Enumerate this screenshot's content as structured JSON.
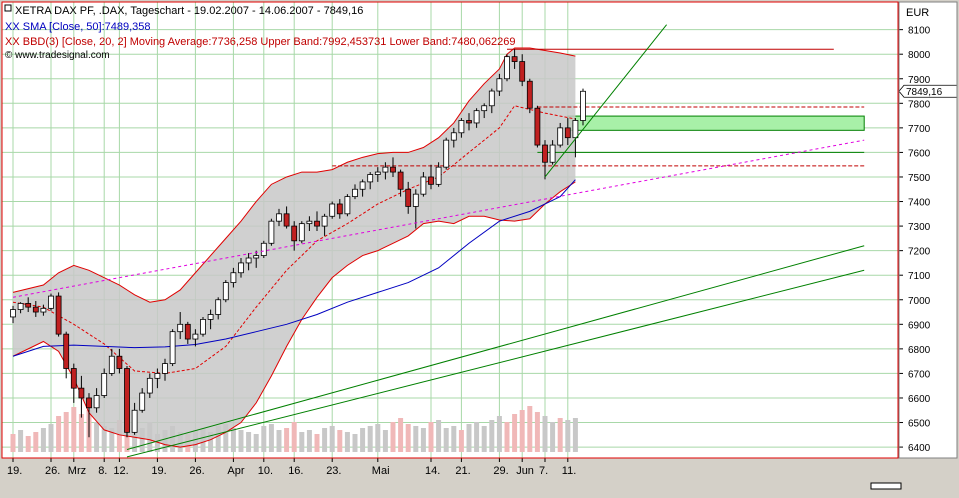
{
  "legend": {
    "line1": "XETRA DAX PF, .DAX, Tageschart - 19.02.2007 - 14.06.2007 - 7849,16",
    "line2": "XX SMA [Close, 50]:7489,358",
    "line3": "XX BBD(3) [Close, 20, 2] Moving Average:7736,258 Upper Band:7992,453731 Lower Band:7480,062269",
    "line4": "© www.tradesignal.com"
  },
  "colors": {
    "background": "#ffffff",
    "frame": "#d4d0c8",
    "border_red": "#e00000",
    "grid": "#a8d8a8",
    "band_fill": "#c8c8c8",
    "band_line": "#e00000",
    "sma": "#0000c0",
    "mid_band": "#e00000",
    "trend_green": "#008000",
    "trend_magenta": "#e000e0",
    "up_candle": "#ffffff",
    "down_candle": "#c02020",
    "volume_up": "#c8c8c8",
    "volume_down": "#f0b8b8",
    "price_marker": "#ffffff"
  },
  "chart_data": {
    "type": "candlestick",
    "instrument": "XETRA DAX PF, .DAX",
    "period": "Tageschart",
    "currency": "EUR",
    "ylim": [
      6380,
      8180
    ],
    "y_ticks": [
      6400,
      6500,
      6600,
      6700,
      6800,
      6900,
      7000,
      7100,
      7200,
      7300,
      7400,
      7500,
      7600,
      7700,
      7800,
      7900,
      8000,
      8100
    ],
    "y_tick_labels": [
      "6400",
      "6500",
      "6600",
      "6700",
      "6800",
      "6900",
      "7000",
      "7100",
      "7200",
      "7300",
      "7400",
      "7500",
      "7600",
      "7700",
      "7800",
      "7900",
      "8000",
      "8100"
    ],
    "last_price_label": "7849,16",
    "last_price": 7849.16,
    "x_labels": [
      {
        "i": 0,
        "label": "19."
      },
      {
        "i": 5,
        "label": "26."
      },
      {
        "i": 8,
        "label": "Mrz"
      },
      {
        "i": 12,
        "label": "8."
      },
      {
        "i": 14,
        "label": "12."
      },
      {
        "i": 19,
        "label": "19."
      },
      {
        "i": 24,
        "label": "26."
      },
      {
        "i": 29,
        "label": "Apr"
      },
      {
        "i": 33,
        "label": "10."
      },
      {
        "i": 37,
        "label": "16."
      },
      {
        "i": 42,
        "label": "23."
      },
      {
        "i": 48,
        "label": "Mai"
      },
      {
        "i": 55,
        "label": "14."
      },
      {
        "i": 59,
        "label": "21."
      },
      {
        "i": 64,
        "label": "29."
      },
      {
        "i": 67,
        "label": "Jun"
      },
      {
        "i": 70,
        "label": "7."
      },
      {
        "i": 73,
        "label": "11."
      }
    ],
    "candles": [
      [
        6930,
        6975,
        6905,
        6960
      ],
      [
        6960,
        6990,
        6945,
        6985
      ],
      [
        6985,
        7010,
        6950,
        6970
      ],
      [
        6970,
        6995,
        6930,
        6950
      ],
      [
        6950,
        6980,
        6935,
        6965
      ],
      [
        6965,
        7025,
        6955,
        7015
      ],
      [
        7015,
        7030,
        6850,
        6860
      ],
      [
        6860,
        6870,
        6680,
        6720
      ],
      [
        6720,
        6740,
        6580,
        6640
      ],
      [
        6640,
        6690,
        6520,
        6600
      ],
      [
        6600,
        6620,
        6440,
        6560
      ],
      [
        6560,
        6640,
        6540,
        6610
      ],
      [
        6610,
        6720,
        6600,
        6700
      ],
      [
        6700,
        6800,
        6690,
        6770
      ],
      [
        6770,
        6800,
        6700,
        6720
      ],
      [
        6720,
        6730,
        6440,
        6460
      ],
      [
        6460,
        6580,
        6450,
        6550
      ],
      [
        6550,
        6640,
        6540,
        6620
      ],
      [
        6620,
        6700,
        6600,
        6680
      ],
      [
        6680,
        6720,
        6640,
        6700
      ],
      [
        6700,
        6760,
        6670,
        6740
      ],
      [
        6740,
        6880,
        6730,
        6870
      ],
      [
        6870,
        6950,
        6840,
        6900
      ],
      [
        6900,
        6910,
        6820,
        6840
      ],
      [
        6840,
        6880,
        6810,
        6860
      ],
      [
        6860,
        6930,
        6850,
        6920
      ],
      [
        6920,
        6960,
        6880,
        6940
      ],
      [
        6940,
        7010,
        6920,
        7000
      ],
      [
        7000,
        7080,
        6990,
        7070
      ],
      [
        7070,
        7130,
        7050,
        7110
      ],
      [
        7110,
        7170,
        7090,
        7150
      ],
      [
        7150,
        7190,
        7120,
        7170
      ],
      [
        7170,
        7200,
        7130,
        7180
      ],
      [
        7180,
        7240,
        7170,
        7230
      ],
      [
        7230,
        7330,
        7220,
        7320
      ],
      [
        7320,
        7370,
        7300,
        7350
      ],
      [
        7350,
        7380,
        7290,
        7300
      ],
      [
        7300,
        7320,
        7200,
        7240
      ],
      [
        7240,
        7320,
        7230,
        7310
      ],
      [
        7310,
        7340,
        7280,
        7320
      ],
      [
        7320,
        7360,
        7280,
        7300
      ],
      [
        7300,
        7350,
        7260,
        7340
      ],
      [
        7340,
        7400,
        7330,
        7390
      ],
      [
        7390,
        7410,
        7330,
        7350
      ],
      [
        7350,
        7430,
        7340,
        7420
      ],
      [
        7420,
        7470,
        7410,
        7450
      ],
      [
        7450,
        7490,
        7420,
        7480
      ],
      [
        7480,
        7520,
        7450,
        7510
      ],
      [
        7510,
        7540,
        7480,
        7520
      ],
      [
        7520,
        7560,
        7490,
        7540
      ],
      [
        7540,
        7580,
        7500,
        7520
      ],
      [
        7520,
        7530,
        7420,
        7450
      ],
      [
        7450,
        7480,
        7350,
        7380
      ],
      [
        7380,
        7450,
        7290,
        7430
      ],
      [
        7430,
        7520,
        7420,
        7500
      ],
      [
        7500,
        7550,
        7450,
        7470
      ],
      [
        7470,
        7560,
        7460,
        7540
      ],
      [
        7540,
        7660,
        7530,
        7650
      ],
      [
        7650,
        7700,
        7620,
        7680
      ],
      [
        7680,
        7740,
        7660,
        7730
      ],
      [
        7730,
        7760,
        7690,
        7720
      ],
      [
        7720,
        7780,
        7700,
        7770
      ],
      [
        7770,
        7800,
        7740,
        7790
      ],
      [
        7790,
        7860,
        7760,
        7850
      ],
      [
        7850,
        7920,
        7830,
        7900
      ],
      [
        7900,
        8000,
        7890,
        7990
      ],
      [
        7990,
        8020,
        7940,
        7970
      ],
      [
        7970,
        8000,
        7870,
        7890
      ],
      [
        7890,
        7900,
        7760,
        7780
      ],
      [
        7780,
        7790,
        7620,
        7630
      ],
      [
        7630,
        7650,
        7490,
        7560
      ],
      [
        7560,
        7650,
        7550,
        7630
      ],
      [
        7630,
        7720,
        7620,
        7700
      ],
      [
        7700,
        7740,
        7630,
        7660
      ],
      [
        7660,
        7740,
        7580,
        7730
      ],
      [
        7730,
        7860,
        7710,
        7849
      ]
    ],
    "volume": [
      [
        18,
        0
      ],
      [
        22,
        1
      ],
      [
        16,
        0
      ],
      [
        20,
        0
      ],
      [
        24,
        1
      ],
      [
        28,
        1
      ],
      [
        36,
        0
      ],
      [
        40,
        0
      ],
      [
        45,
        0
      ],
      [
        38,
        0
      ],
      [
        42,
        0
      ],
      [
        30,
        1
      ],
      [
        26,
        1
      ],
      [
        24,
        1
      ],
      [
        32,
        0
      ],
      [
        40,
        0
      ],
      [
        28,
        1
      ],
      [
        24,
        1
      ],
      [
        30,
        1
      ],
      [
        18,
        1
      ],
      [
        22,
        1
      ],
      [
        26,
        1
      ],
      [
        20,
        1
      ],
      [
        18,
        0
      ],
      [
        22,
        1
      ],
      [
        24,
        1
      ],
      [
        20,
        1
      ],
      [
        26,
        1
      ],
      [
        28,
        1
      ],
      [
        24,
        1
      ],
      [
        22,
        1
      ],
      [
        20,
        1
      ],
      [
        18,
        1
      ],
      [
        26,
        1
      ],
      [
        28,
        1
      ],
      [
        22,
        1
      ],
      [
        24,
        0
      ],
      [
        30,
        0
      ],
      [
        20,
        1
      ],
      [
        22,
        1
      ],
      [
        18,
        0
      ],
      [
        24,
        1
      ],
      [
        26,
        1
      ],
      [
        22,
        0
      ],
      [
        20,
        1
      ],
      [
        18,
        1
      ],
      [
        24,
        1
      ],
      [
        26,
        1
      ],
      [
        28,
        1
      ],
      [
        22,
        1
      ],
      [
        30,
        0
      ],
      [
        34,
        0
      ],
      [
        28,
        0
      ],
      [
        26,
        1
      ],
      [
        24,
        1
      ],
      [
        30,
        0
      ],
      [
        32,
        1
      ],
      [
        24,
        1
      ],
      [
        26,
        1
      ],
      [
        22,
        0
      ],
      [
        28,
        1
      ],
      [
        30,
        1
      ],
      [
        26,
        1
      ],
      [
        32,
        1
      ],
      [
        36,
        1
      ],
      [
        30,
        0
      ],
      [
        38,
        0
      ],
      [
        42,
        0
      ],
      [
        46,
        0
      ],
      [
        40,
        0
      ],
      [
        36,
        1
      ],
      [
        30,
        1
      ],
      [
        34,
        0
      ],
      [
        32,
        1
      ],
      [
        34,
        1
      ]
    ],
    "sma50": [
      [
        0,
        6770
      ],
      [
        4,
        6810
      ],
      [
        8,
        6815
      ],
      [
        12,
        6810
      ],
      [
        16,
        6805
      ],
      [
        20,
        6808
      ],
      [
        24,
        6818
      ],
      [
        28,
        6840
      ],
      [
        32,
        6870
      ],
      [
        36,
        6900
      ],
      [
        40,
        6940
      ],
      [
        44,
        6990
      ],
      [
        48,
        7030
      ],
      [
        52,
        7070
      ],
      [
        56,
        7130
      ],
      [
        60,
        7230
      ],
      [
        64,
        7320
      ],
      [
        68,
        7360
      ],
      [
        72,
        7420
      ],
      [
        74,
        7489
      ]
    ],
    "bb_mid": [
      [
        0,
        6990
      ],
      [
        4,
        6970
      ],
      [
        8,
        6900
      ],
      [
        12,
        6820
      ],
      [
        16,
        6710
      ],
      [
        20,
        6700
      ],
      [
        24,
        6720
      ],
      [
        28,
        6810
      ],
      [
        32,
        6970
      ],
      [
        36,
        7120
      ],
      [
        40,
        7240
      ],
      [
        44,
        7310
      ],
      [
        48,
        7390
      ],
      [
        52,
        7450
      ],
      [
        56,
        7500
      ],
      [
        60,
        7600
      ],
      [
        64,
        7700
      ],
      [
        66,
        7790
      ],
      [
        70,
        7760
      ],
      [
        74,
        7736
      ]
    ],
    "bb_upper": [
      [
        0,
        7030
      ],
      [
        4,
        7060
      ],
      [
        6,
        7110
      ],
      [
        8,
        7140
      ],
      [
        10,
        7120
      ],
      [
        12,
        7090
      ],
      [
        14,
        7060
      ],
      [
        16,
        7020
      ],
      [
        18,
        6990
      ],
      [
        20,
        7000
      ],
      [
        22,
        7040
      ],
      [
        24,
        7110
      ],
      [
        26,
        7180
      ],
      [
        28,
        7250
      ],
      [
        30,
        7320
      ],
      [
        32,
        7400
      ],
      [
        34,
        7470
      ],
      [
        36,
        7500
      ],
      [
        38,
        7520
      ],
      [
        40,
        7520
      ],
      [
        42,
        7530
      ],
      [
        44,
        7560
      ],
      [
        46,
        7580
      ],
      [
        48,
        7595
      ],
      [
        50,
        7600
      ],
      [
        52,
        7600
      ],
      [
        54,
        7620
      ],
      [
        56,
        7660
      ],
      [
        58,
        7720
      ],
      [
        60,
        7810
      ],
      [
        62,
        7880
      ],
      [
        64,
        7940
      ],
      [
        65,
        8000
      ],
      [
        66,
        8025
      ],
      [
        68,
        8025
      ],
      [
        70,
        8015
      ],
      [
        72,
        8005
      ],
      [
        74,
        7992
      ]
    ],
    "bb_lower": [
      [
        0,
        6770
      ],
      [
        2,
        6800
      ],
      [
        4,
        6830
      ],
      [
        6,
        6790
      ],
      [
        8,
        6680
      ],
      [
        10,
        6540
      ],
      [
        12,
        6470
      ],
      [
        14,
        6450
      ],
      [
        16,
        6440
      ],
      [
        18,
        6430
      ],
      [
        20,
        6410
      ],
      [
        22,
        6400
      ],
      [
        24,
        6410
      ],
      [
        26,
        6430
      ],
      [
        28,
        6460
      ],
      [
        30,
        6500
      ],
      [
        32,
        6580
      ],
      [
        34,
        6690
      ],
      [
        36,
        6810
      ],
      [
        38,
        6920
      ],
      [
        40,
        7010
      ],
      [
        42,
        7090
      ],
      [
        44,
        7140
      ],
      [
        46,
        7180
      ],
      [
        48,
        7200
      ],
      [
        50,
        7230
      ],
      [
        52,
        7260
      ],
      [
        54,
        7310
      ],
      [
        56,
        7320
      ],
      [
        58,
        7310
      ],
      [
        60,
        7340
      ],
      [
        62,
        7340
      ],
      [
        64,
        7325
      ],
      [
        66,
        7320
      ],
      [
        68,
        7330
      ],
      [
        70,
        7390
      ],
      [
        72,
        7440
      ],
      [
        74,
        7480
      ]
    ],
    "horizontal_lines": [
      {
        "y": 8020,
        "x0": 65,
        "x1": 108,
        "style": "solid",
        "color": "#c00000"
      },
      {
        "y": 7785,
        "x0": 69,
        "x1": 112,
        "style": "dashed",
        "color": "#c00000"
      },
      {
        "y": 7600,
        "x0": 69,
        "x1": 112,
        "style": "solid",
        "color": "#008000"
      },
      {
        "y": 7545,
        "x0": 42,
        "x1": 112,
        "style": "dashed",
        "color": "#c00000"
      }
    ],
    "zones": [
      {
        "y0": 7690,
        "y1": 7748,
        "x0": 73,
        "x1": 112,
        "color": "#a8f0a8"
      }
    ],
    "trend_lines": [
      {
        "p0": [
          15,
          6390
        ],
        "p1": [
          112,
          7220
        ],
        "color": "#008000",
        "style": "solid"
      },
      {
        "p0": [
          15,
          6360
        ],
        "p1": [
          112,
          7120
        ],
        "color": "#008000",
        "style": "solid"
      },
      {
        "p0": [
          70,
          7500
        ],
        "p1": [
          86,
          8120
        ],
        "color": "#008000",
        "style": "solid"
      },
      {
        "p0": [
          0,
          7010
        ],
        "p1": [
          112,
          7650
        ],
        "color": "#e000e0",
        "style": "dashed"
      }
    ],
    "grid": true
  }
}
